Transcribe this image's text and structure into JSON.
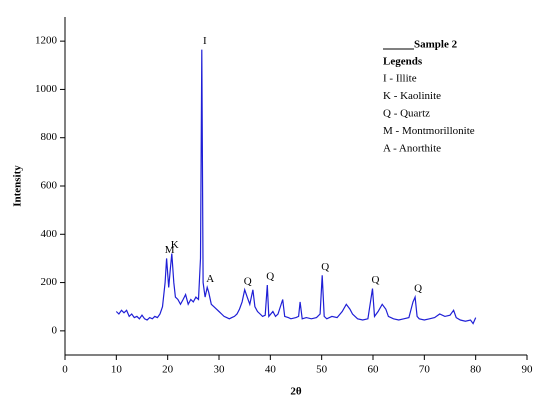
{
  "chart_data": {
    "type": "line",
    "ylabel": "Intensity",
    "xlabel": "2θ",
    "xlim": [
      0,
      90
    ],
    "xticks": [
      0,
      10,
      20,
      30,
      40,
      50,
      60,
      70,
      80,
      90
    ],
    "ylim": [
      -100,
      1300
    ],
    "yticks": [
      0,
      200,
      400,
      600,
      800,
      1000,
      1200
    ],
    "color": "#1f1fd6",
    "x": [
      10,
      10.5,
      11,
      11.5,
      12,
      12.5,
      13,
      13.5,
      14,
      14.5,
      15,
      15.5,
      16,
      16.5,
      17,
      17.5,
      18,
      18.5,
      19,
      19.5,
      19.8,
      20.2,
      20.5,
      20.8,
      21.2,
      21.5,
      22,
      22.5,
      23,
      23.5,
      24,
      24.5,
      25,
      25.5,
      26,
      26.4,
      26.65,
      26.9,
      27.3,
      27.7,
      28,
      28.5,
      29,
      29.5,
      30,
      30.5,
      31,
      31.5,
      32,
      32.5,
      33,
      33.5,
      34,
      34.5,
      35,
      35.5,
      36,
      36.6,
      37,
      37.5,
      38,
      38.5,
      39,
      39.4,
      39.7,
      40.5,
      41,
      41.5,
      42.4,
      42.8,
      43.5,
      44,
      45,
      45.5,
      45.8,
      46.2,
      47,
      48,
      49,
      49.7,
      50.1,
      50.5,
      51,
      52,
      53,
      54,
      54.8,
      55.5,
      56,
      57,
      58,
      59,
      59.9,
      60.3,
      61,
      61.8,
      62.5,
      63,
      64,
      65,
      66,
      67,
      67.8,
      68.2,
      68.6,
      69,
      70,
      71,
      72,
      73,
      74,
      75,
      75.7,
      76.2,
      77,
      78,
      79,
      79.5,
      80
    ],
    "values": [
      80,
      70,
      85,
      75,
      85,
      60,
      70,
      55,
      60,
      50,
      65,
      50,
      45,
      55,
      50,
      60,
      55,
      70,
      100,
      200,
      300,
      180,
      250,
      320,
      200,
      140,
      130,
      110,
      130,
      150,
      110,
      130,
      120,
      140,
      130,
      300,
      1165,
      200,
      140,
      180,
      160,
      110,
      100,
      90,
      80,
      70,
      60,
      55,
      50,
      55,
      60,
      70,
      90,
      120,
      170,
      140,
      110,
      170,
      100,
      80,
      70,
      60,
      65,
      190,
      60,
      80,
      60,
      70,
      130,
      60,
      55,
      50,
      55,
      60,
      120,
      50,
      55,
      50,
      55,
      70,
      230,
      60,
      50,
      60,
      55,
      80,
      110,
      90,
      70,
      50,
      45,
      50,
      175,
      60,
      80,
      110,
      90,
      60,
      50,
      45,
      50,
      55,
      120,
      140,
      60,
      50,
      45,
      50,
      55,
      70,
      60,
      65,
      85,
      55,
      45,
      40,
      45,
      30,
      55
    ],
    "annotations": [
      {
        "text": "M",
        "x": 19.8
      },
      {
        "text": "K",
        "x": 20.8
      },
      {
        "text": "I",
        "x": 26.65
      },
      {
        "text": "A",
        "x": 27.7
      },
      {
        "text": "Q",
        "x": 35
      },
      {
        "text": "Q",
        "x": 39.4
      },
      {
        "text": "Q",
        "x": 50.1
      },
      {
        "text": "Q",
        "x": 59.9
      },
      {
        "text": "Q",
        "x": 68.2
      }
    ],
    "legend_title": "Sample 2",
    "legend_heading": "Legends",
    "legend_items": [
      "I - Illite",
      "K - Kaolinite",
      "Q - Quartz",
      "M - Montmorillonite",
      "A - Anorthite"
    ]
  }
}
